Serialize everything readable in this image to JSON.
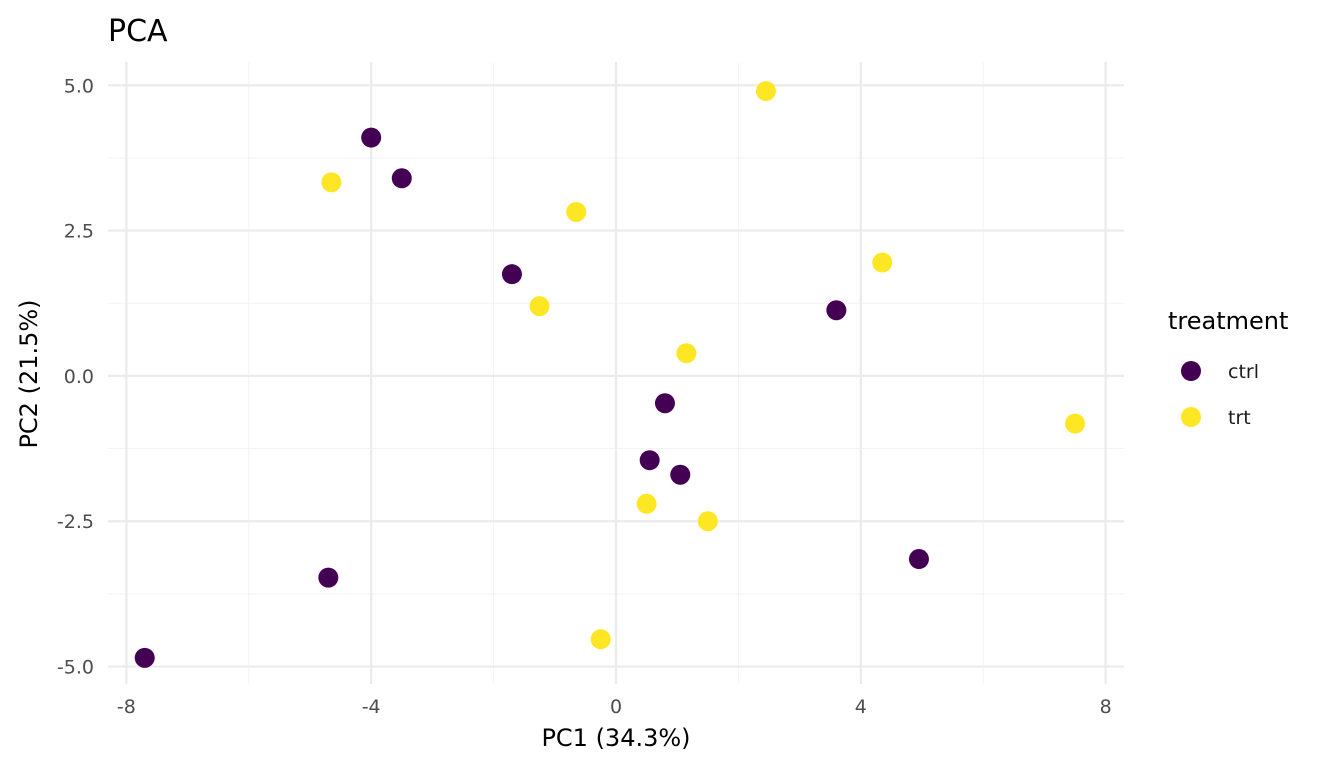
{
  "chart_data": {
    "type": "scatter",
    "title": "PCA",
    "xlabel": "PC1 (34.3%)",
    "ylabel": "PC2 (21.5%)",
    "xlim": [
      -8.3,
      8.3
    ],
    "ylim": [
      -5.3,
      5.4
    ],
    "x_ticks": [
      -8,
      -4,
      0,
      4,
      8
    ],
    "x_tick_labels": [
      "-8",
      "-4",
      "0",
      "4",
      "8"
    ],
    "y_ticks": [
      -5.0,
      -2.5,
      0.0,
      2.5,
      5.0
    ],
    "y_tick_labels": [
      "-5.0",
      "-2.5",
      "0.0",
      "2.5",
      "5.0"
    ],
    "grid": true,
    "legend": {
      "title": "treatment",
      "position": "right"
    },
    "series": [
      {
        "name": "ctrl",
        "color": "#440154",
        "points": [
          {
            "x": -4.0,
            "y": 4.1
          },
          {
            "x": -3.5,
            "y": 3.4
          },
          {
            "x": -1.7,
            "y": 1.75
          },
          {
            "x": 3.6,
            "y": 1.13
          },
          {
            "x": 0.8,
            "y": -0.47
          },
          {
            "x": 0.55,
            "y": -1.45
          },
          {
            "x": 1.05,
            "y": -1.7
          },
          {
            "x": -4.7,
            "y": -3.47
          },
          {
            "x": 4.95,
            "y": -3.15
          },
          {
            "x": -7.7,
            "y": -4.85
          }
        ]
      },
      {
        "name": "trt",
        "color": "#FDE725",
        "points": [
          {
            "x": 2.45,
            "y": 4.9
          },
          {
            "x": -4.65,
            "y": 3.33
          },
          {
            "x": -0.65,
            "y": 2.82
          },
          {
            "x": 4.35,
            "y": 1.95
          },
          {
            "x": -1.25,
            "y": 1.2
          },
          {
            "x": 1.15,
            "y": 0.39
          },
          {
            "x": 7.5,
            "y": -0.82
          },
          {
            "x": 0.5,
            "y": -2.2
          },
          {
            "x": 1.5,
            "y": -2.5
          },
          {
            "x": -0.25,
            "y": -4.53
          }
        ]
      }
    ]
  }
}
